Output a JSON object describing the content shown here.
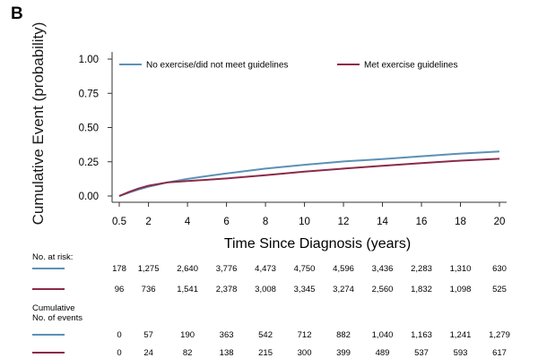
{
  "panel_label": "B",
  "colors": {
    "series_1": "#5b91b5",
    "series_2": "#8c2a48",
    "axis": "#333333",
    "text": "#1a1a1a"
  },
  "chart_data": {
    "type": "line",
    "title": "",
    "xlabel": "Time Since Diagnosis (years)",
    "ylabel": "Cumulative Event (probability)",
    "xlim": [
      0.5,
      20
    ],
    "ylim": [
      0,
      1
    ],
    "xticks": [
      0.5,
      2,
      4,
      6,
      8,
      10,
      12,
      14,
      16,
      18,
      20
    ],
    "xtick_labels": [
      "0.5",
      "2",
      "4",
      "6",
      "8",
      "10",
      "12",
      "14",
      "16",
      "18",
      "20"
    ],
    "yticks": [
      0,
      0.25,
      0.5,
      0.75,
      1
    ],
    "ytick_labels": [
      "0.00",
      "0.25",
      "0.50",
      "0.75",
      "1.00"
    ],
    "legend_position": "top",
    "series": [
      {
        "name": "No exercise/did not meet guidelines",
        "color": "#5b91b5",
        "x": [
          0.5,
          1,
          1.5,
          2,
          3,
          4,
          5,
          6,
          8,
          10,
          12,
          14,
          16,
          18,
          20
        ],
        "y": [
          0.0,
          0.025,
          0.048,
          0.068,
          0.1,
          0.125,
          0.145,
          0.165,
          0.2,
          0.228,
          0.252,
          0.27,
          0.29,
          0.31,
          0.325
        ]
      },
      {
        "name": "Met exercise guidelines",
        "color": "#8c2a48",
        "x": [
          0.5,
          1,
          1.5,
          2,
          3,
          4,
          5,
          6,
          8,
          10,
          12,
          14,
          16,
          18,
          20
        ],
        "y": [
          0.0,
          0.03,
          0.055,
          0.075,
          0.1,
          0.11,
          0.118,
          0.128,
          0.152,
          0.178,
          0.2,
          0.22,
          0.24,
          0.258,
          0.272
        ]
      }
    ],
    "risk_table": {
      "at_risk_label": "No. at risk:",
      "events_label_line1": "Cumulative",
      "events_label_line2": "No. of events",
      "at_risk": [
        [
          "178",
          "1,275",
          "2,640",
          "3,776",
          "4,473",
          "4,750",
          "4,596",
          "3,436",
          "2,283",
          "1,310",
          "630"
        ],
        [
          "96",
          "736",
          "1,541",
          "2,378",
          "3,008",
          "3,345",
          "3,274",
          "2,560",
          "1,832",
          "1,098",
          "525"
        ]
      ],
      "events": [
        [
          "0",
          "57",
          "190",
          "363",
          "542",
          "712",
          "882",
          "1,040",
          "1,163",
          "1,241",
          "1,279"
        ],
        [
          "0",
          "24",
          "82",
          "138",
          "215",
          "300",
          "399",
          "489",
          "537",
          "593",
          "617"
        ]
      ]
    }
  }
}
